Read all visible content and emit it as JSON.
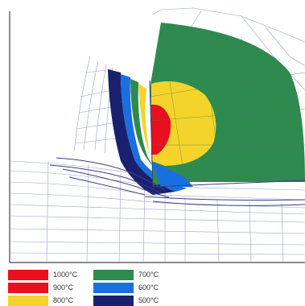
{
  "legend": {
    "items": [
      {
        "label": "1000°C",
        "color": "#e8101e"
      },
      {
        "label": "900°C",
        "color": "#e8101e"
      },
      {
        "label": "800°C",
        "color": "#f4d42a"
      },
      {
        "label": "700°C",
        "color": "#2e8a4f"
      },
      {
        "label": "600°C",
        "color": "#1a6fe0"
      },
      {
        "label": "500°C",
        "color": "#1a2070"
      }
    ]
  },
  "colors": {
    "frame": "#444444",
    "mesh": "#9ba3c8",
    "chip_outline": "#3a3e80",
    "tool": "#2e8a4f"
  }
}
